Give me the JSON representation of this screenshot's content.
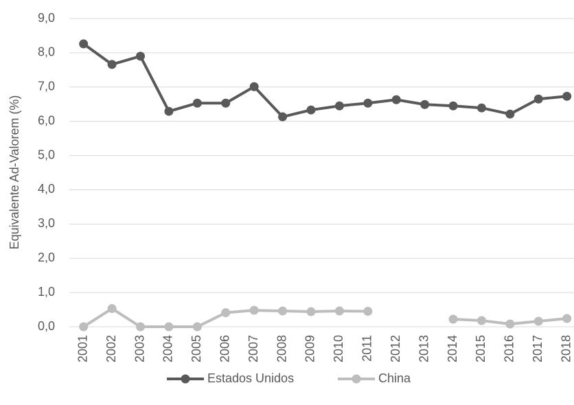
{
  "chart_data": {
    "type": "line",
    "y_label": "Equivalente Ad-Valorem (%)",
    "categories": [
      "2001",
      "2002",
      "2003",
      "2004",
      "2005",
      "2006",
      "2007",
      "2008",
      "2009",
      "2010",
      "2011",
      "2012",
      "2013",
      "2014",
      "2015",
      "2016",
      "2017",
      "2018"
    ],
    "series": [
      {
        "name": "Estados Unidos",
        "color": "#595959",
        "values": [
          8.26,
          7.66,
          7.9,
          6.29,
          6.53,
          6.53,
          7.01,
          6.13,
          6.33,
          6.45,
          6.53,
          6.63,
          6.49,
          6.45,
          6.39,
          6.21,
          6.65,
          6.73
        ]
      },
      {
        "name": "China",
        "color": "#bdbdbd",
        "values": [
          0,
          0.53,
          0,
          0,
          0,
          0.41,
          0.48,
          0.46,
          0.44,
          0.46,
          0.45,
          null,
          null,
          0.22,
          0.18,
          0.08,
          0.16,
          0.24
        ]
      }
    ],
    "ylim": [
      0,
      9
    ],
    "yticks": [
      {
        "value": 0,
        "label": "0,0"
      },
      {
        "value": 1,
        "label": "1,0"
      },
      {
        "value": 2,
        "label": "2,0"
      },
      {
        "value": 3,
        "label": "3,0"
      },
      {
        "value": 4,
        "label": "4,0"
      },
      {
        "value": 5,
        "label": "5,0"
      },
      {
        "value": 6,
        "label": "6,0"
      },
      {
        "value": 7,
        "label": "7,0"
      },
      {
        "value": 8,
        "label": "8,0"
      },
      {
        "value": 9,
        "label": "9,0"
      }
    ],
    "grid": true,
    "legend": "bottom"
  }
}
